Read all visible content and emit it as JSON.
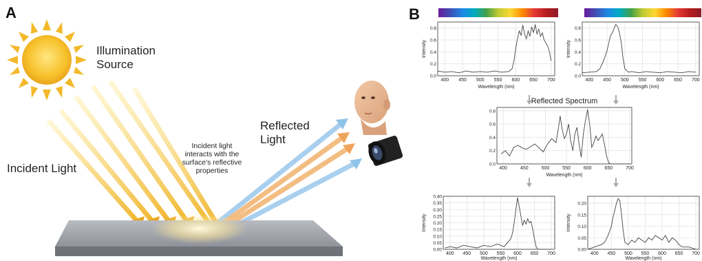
{
  "panel_a": {
    "letter": "A",
    "illumination_source": [
      "Illumination",
      "Source"
    ],
    "incident_light": "Incident Light",
    "reflected_light": [
      "Reflected",
      "Light"
    ],
    "interaction_note": [
      "Incident light",
      "interacts with the",
      "surface's reflective",
      "properties"
    ],
    "colors": {
      "sun": "#f7c12b",
      "incident_beam": "#f3c33b",
      "reflected_blue": "#8fc3e8",
      "reflected_orange": "#f0a35a",
      "surface": "#9a9da3"
    },
    "icons": [
      "sun-icon",
      "human-head-icon",
      "camera-lens-icon"
    ]
  },
  "panel_b": {
    "letter": "B",
    "reflected_title": "Reflected Spectrum"
  },
  "chart_data": [
    {
      "id": "spec-top-left",
      "type": "line",
      "title": "",
      "xlabel": "Wavelength (nm)",
      "ylabel": "Intensity",
      "xlim": [
        380,
        710
      ],
      "ylim": [
        0,
        0.9
      ],
      "xticks": [
        "400",
        "450",
        "500",
        "550",
        "600",
        "650",
        "700"
      ],
      "yticks": [
        "0.0",
        "0.2",
        "0.4",
        "0.6",
        "0.8"
      ],
      "grid": true,
      "series": [
        {
          "x": [
            380,
            400,
            420,
            440,
            460,
            480,
            500,
            520,
            540,
            560,
            580,
            590,
            595,
            600,
            605,
            610,
            615,
            620,
            625,
            630,
            635,
            640,
            645,
            650,
            655,
            660,
            665,
            670,
            675,
            680,
            685,
            690,
            695,
            700
          ],
          "y": [
            0.08,
            0.06,
            0.07,
            0.05,
            0.08,
            0.06,
            0.07,
            0.06,
            0.08,
            0.06,
            0.07,
            0.12,
            0.25,
            0.45,
            0.62,
            0.75,
            0.68,
            0.85,
            0.7,
            0.62,
            0.75,
            0.66,
            0.82,
            0.72,
            0.86,
            0.7,
            0.78,
            0.66,
            0.72,
            0.6,
            0.55,
            0.5,
            0.4,
            0.25
          ]
        }
      ]
    },
    {
      "id": "spec-top-right",
      "type": "line",
      "title": "",
      "xlabel": "Wavelength (nm)",
      "ylabel": "Intensity",
      "xlim": [
        380,
        710
      ],
      "ylim": [
        0,
        0.9
      ],
      "xticks": [
        "400",
        "450",
        "500",
        "550",
        "600",
        "650",
        "700"
      ],
      "yticks": [
        "0.0",
        "0.2",
        "0.4",
        "0.6",
        "0.8"
      ],
      "grid": true,
      "series": [
        {
          "x": [
            380,
            400,
            420,
            430,
            440,
            450,
            455,
            460,
            465,
            470,
            475,
            480,
            485,
            490,
            495,
            500,
            510,
            520,
            540,
            560,
            580,
            600,
            620,
            640,
            660,
            680,
            700
          ],
          "y": [
            0.05,
            0.06,
            0.07,
            0.12,
            0.25,
            0.42,
            0.55,
            0.68,
            0.72,
            0.8,
            0.86,
            0.82,
            0.72,
            0.55,
            0.3,
            0.12,
            0.06,
            0.07,
            0.05,
            0.07,
            0.06,
            0.05,
            0.07,
            0.06,
            0.05,
            0.07,
            0.06
          ]
        }
      ]
    },
    {
      "id": "spec-reflected",
      "type": "line",
      "title": "Reflected Spectrum",
      "xlabel": "Wavelength (nm)",
      "ylabel": "",
      "xlim": [
        385,
        705
      ],
      "ylim": [
        0,
        0.85
      ],
      "xticks": [
        "400",
        "450",
        "500",
        "550",
        "600",
        "650",
        "700"
      ],
      "yticks": [
        "0.0",
        "0.2",
        "0.4",
        "0.6",
        "0.8"
      ],
      "grid": true,
      "series": [
        {
          "x": [
            395,
            405,
            415,
            425,
            435,
            445,
            455,
            465,
            475,
            485,
            495,
            505,
            515,
            525,
            530,
            535,
            540,
            545,
            550,
            555,
            560,
            565,
            570,
            575,
            580,
            585,
            590,
            595,
            600,
            605,
            610,
            615,
            620,
            625,
            630,
            635,
            640,
            645,
            650,
            655,
            660,
            680,
            700
          ],
          "y": [
            0.15,
            0.2,
            0.12,
            0.25,
            0.28,
            0.24,
            0.22,
            0.26,
            0.3,
            0.24,
            0.18,
            0.3,
            0.38,
            0.32,
            0.5,
            0.72,
            0.52,
            0.38,
            0.45,
            0.6,
            0.35,
            0.2,
            0.45,
            0.55,
            0.3,
            0.1,
            0.45,
            0.65,
            0.82,
            0.6,
            0.25,
            0.32,
            0.42,
            0.35,
            0.4,
            0.45,
            0.3,
            0.12,
            0.02,
            0.0,
            0.0,
            0.0,
            0.0
          ]
        }
      ]
    },
    {
      "id": "spec-bottom-left",
      "type": "line",
      "title": "",
      "xlabel": "Wavelength (nm)",
      "ylabel": "Intensity",
      "xlim": [
        380,
        710
      ],
      "ylim": [
        0,
        0.4
      ],
      "xticks": [
        "400",
        "450",
        "500",
        "550",
        "600",
        "650",
        "700"
      ],
      "yticks": [
        "0.00",
        "0.05",
        "0.10",
        "0.15",
        "0.20",
        "0.25",
        "0.30",
        "0.35",
        "0.40"
      ],
      "grid": true,
      "series": [
        {
          "x": [
            385,
            400,
            420,
            440,
            460,
            480,
            500,
            520,
            540,
            560,
            570,
            580,
            585,
            590,
            595,
            600,
            605,
            610,
            615,
            620,
            625,
            630,
            635,
            640,
            645,
            650,
            655,
            660,
            700
          ],
          "y": [
            0.01,
            0.02,
            0.01,
            0.03,
            0.02,
            0.01,
            0.03,
            0.02,
            0.04,
            0.02,
            0.05,
            0.08,
            0.12,
            0.2,
            0.3,
            0.39,
            0.32,
            0.25,
            0.18,
            0.22,
            0.19,
            0.23,
            0.2,
            0.21,
            0.15,
            0.08,
            0.02,
            0.0,
            0.0
          ]
        }
      ]
    },
    {
      "id": "spec-bottom-right",
      "type": "line",
      "title": "",
      "xlabel": "Wavelength (nm)",
      "ylabel": "Intensity",
      "xlim": [
        380,
        710
      ],
      "ylim": [
        0,
        0.23
      ],
      "xticks": [
        "400",
        "450",
        "500",
        "550",
        "600",
        "650",
        "700"
      ],
      "yticks": [
        "0.00",
        "0.05",
        "0.10",
        "0.15",
        "0.20"
      ],
      "grid": true,
      "series": [
        {
          "x": [
            380,
            400,
            420,
            430,
            440,
            450,
            455,
            460,
            465,
            470,
            475,
            480,
            485,
            490,
            500,
            510,
            520,
            530,
            540,
            550,
            560,
            570,
            580,
            590,
            600,
            610,
            620,
            630,
            640,
            650,
            660,
            680,
            700
          ],
          "y": [
            0.0,
            0.01,
            0.02,
            0.03,
            0.06,
            0.1,
            0.14,
            0.17,
            0.2,
            0.22,
            0.21,
            0.15,
            0.08,
            0.03,
            0.02,
            0.04,
            0.03,
            0.05,
            0.04,
            0.03,
            0.05,
            0.04,
            0.06,
            0.05,
            0.04,
            0.06,
            0.03,
            0.05,
            0.04,
            0.02,
            0.01,
            0.01,
            0.0
          ]
        }
      ]
    }
  ]
}
